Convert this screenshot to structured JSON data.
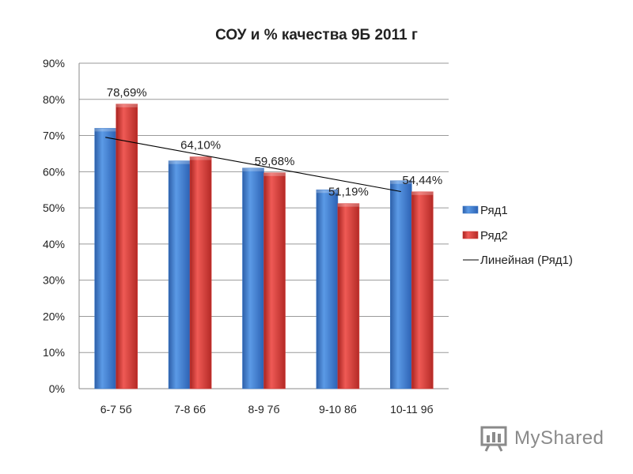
{
  "chart_data": {
    "type": "bar",
    "title": "СОУ и % качества 9Б 2011 г",
    "categories": [
      "6-7 5б",
      "7-8 6б",
      "8-9 7б",
      "9-10 8б",
      "10-11 9б"
    ],
    "series": [
      {
        "name": "Ряд1",
        "values": [
          72,
          63,
          61,
          55,
          57.5
        ],
        "color": "#3a78c9"
      },
      {
        "name": "Ряд2",
        "values": [
          78.69,
          64.1,
          59.68,
          51.19,
          54.44
        ],
        "color": "#d63a36"
      }
    ],
    "data_labels": [
      "78,69%",
      "64,10%",
      "59,68%",
      "51,19%",
      "54,44%"
    ],
    "trendline": {
      "name": "Линейная (Ряд1)",
      "of_series": "Ряд1",
      "start": 69.5,
      "end": 54.5,
      "color": "#000000"
    },
    "ylim": [
      0,
      90
    ],
    "yticks": [
      "0%",
      "10%",
      "20%",
      "30%",
      "40%",
      "50%",
      "60%",
      "70%",
      "80%",
      "90%"
    ],
    "grid": true,
    "legend_position": "right"
  },
  "watermark": {
    "text": "MyShared"
  }
}
